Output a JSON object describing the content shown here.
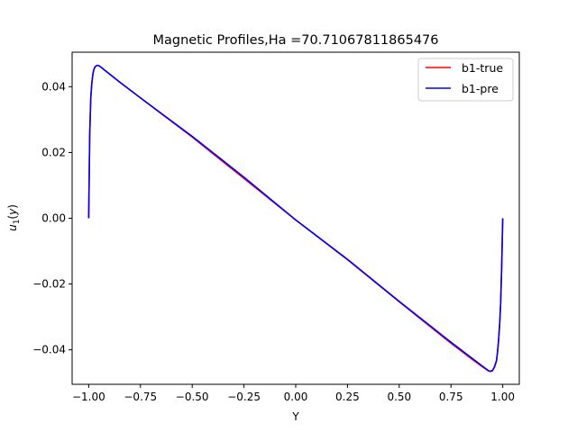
{
  "chart_data": {
    "type": "line",
    "title": "Magnetic Profiles,Ha =70.71067811865476",
    "xlabel": "Y",
    "ylabel": "u1(y)",
    "xlim": [
      -1.08,
      1.08
    ],
    "ylim": [
      -0.0505,
      0.0505
    ],
    "xticks": [
      -1.0,
      -0.75,
      -0.5,
      -0.25,
      0.0,
      0.25,
      0.5,
      0.75,
      1.0
    ],
    "xtick_labels": [
      "−1.00",
      "−0.75",
      "−0.50",
      "−0.25",
      "0.00",
      "0.25",
      "0.50",
      "0.75",
      "1.00"
    ],
    "yticks": [
      -0.04,
      -0.02,
      0.0,
      0.02,
      0.04
    ],
    "ytick_labels": [
      "−0.04",
      "−0.02",
      "0.00",
      "0.02",
      "0.04"
    ],
    "grid": false,
    "legend_position": "top-right",
    "series": [
      {
        "name": "b1-true",
        "color": "#ff0000",
        "x": [
          -1.0,
          -0.995,
          -0.99,
          -0.985,
          -0.98,
          -0.975,
          -0.97,
          -0.96,
          -0.95,
          -0.94,
          -0.93,
          -0.9,
          -0.85,
          -0.75,
          -0.5,
          -0.25,
          0.0,
          0.25,
          0.5,
          0.75,
          0.85,
          0.9,
          0.93,
          0.94,
          0.95,
          0.96,
          0.97,
          0.975,
          0.98,
          0.985,
          0.99,
          0.995,
          1.0
        ],
        "y": [
          0.0,
          0.0255,
          0.0365,
          0.041,
          0.0437,
          0.0452,
          0.046,
          0.0465,
          0.0464,
          0.0459,
          0.0454,
          0.0439,
          0.0414,
          0.0366,
          0.0247,
          0.0121,
          -0.0005,
          -0.0126,
          -0.0254,
          -0.038,
          -0.0428,
          -0.0451,
          -0.0464,
          -0.0465,
          -0.0463,
          -0.0452,
          -0.0432,
          -0.0405,
          -0.037,
          -0.0322,
          -0.0258,
          -0.0145,
          0.0
        ]
      },
      {
        "name": "b1-pre",
        "color": "#0000ff",
        "x": [
          -1.0,
          -0.995,
          -0.99,
          -0.985,
          -0.98,
          -0.975,
          -0.97,
          -0.96,
          -0.95,
          -0.94,
          -0.93,
          -0.9,
          -0.85,
          -0.75,
          -0.5,
          -0.25,
          0.0,
          0.25,
          0.5,
          0.75,
          0.85,
          0.9,
          0.93,
          0.94,
          0.95,
          0.96,
          0.97,
          0.975,
          0.98,
          0.985,
          0.99,
          0.995,
          1.0
        ],
        "y": [
          0.0,
          0.0255,
          0.0365,
          0.041,
          0.0437,
          0.0452,
          0.046,
          0.0465,
          0.0464,
          0.0459,
          0.0454,
          0.0439,
          0.0414,
          0.0366,
          0.0249,
          0.0125,
          -0.0005,
          -0.0125,
          -0.0253,
          -0.0377,
          -0.0425,
          -0.0449,
          -0.0463,
          -0.0466,
          -0.0464,
          -0.0453,
          -0.0433,
          -0.0406,
          -0.0371,
          -0.0323,
          -0.0259,
          -0.0146,
          0.0
        ]
      }
    ]
  }
}
